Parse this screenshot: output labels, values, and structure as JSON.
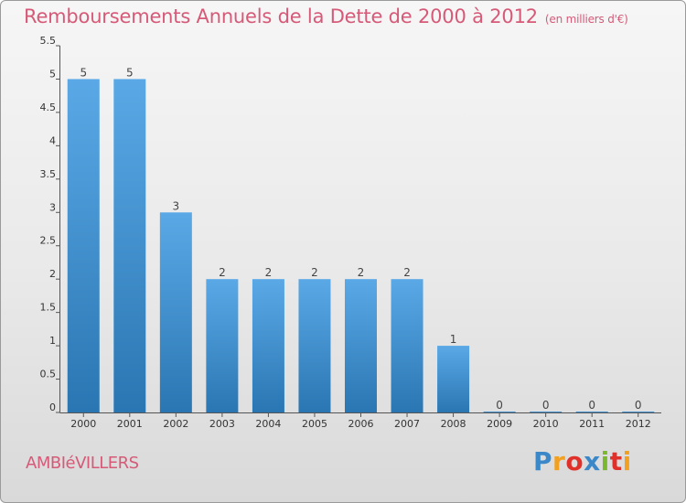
{
  "title": "Remboursements Annuels de la Dette de 2000 à 2012",
  "unit": "(en milliers d'€)",
  "town": "AMBIéVILLERS",
  "logo": {
    "text": "Proxiti",
    "letters": [
      "P",
      "r",
      "o",
      "x",
      "i",
      "t",
      "i"
    ],
    "colors": [
      "#3a88c8",
      "#f2a020",
      "#e0302a",
      "#3a88c8",
      "#7ab830",
      "#e0302a",
      "#f2a020"
    ]
  },
  "colors": {
    "bar_top": "#5aa9e6",
    "bar_bottom": "#2a76b3",
    "title": "#d65a78"
  },
  "chart_data": {
    "type": "bar",
    "title": "Remboursements Annuels de la Dette de 2000 à 2012",
    "ylabel": "(en milliers d'€)",
    "xlabel": "",
    "categories": [
      "2000",
      "2001",
      "2002",
      "2003",
      "2004",
      "2005",
      "2006",
      "2007",
      "2008",
      "2009",
      "2010",
      "2011",
      "2012"
    ],
    "values": [
      5,
      5,
      3,
      2,
      2,
      2,
      2,
      2,
      1,
      0,
      0,
      0,
      0
    ],
    "data_labels": [
      "5",
      "5",
      "3",
      "2",
      "2",
      "2",
      "2",
      "2",
      "1",
      "0",
      "0",
      "0",
      "0"
    ],
    "yticks": [
      "0",
      "0.5",
      "1",
      "1.5",
      "2",
      "2.5",
      "3",
      "3.5",
      "4",
      "4.5",
      "5",
      "5.5"
    ],
    "ylim": [
      0,
      5.5
    ],
    "grid": false,
    "legend": "none"
  }
}
